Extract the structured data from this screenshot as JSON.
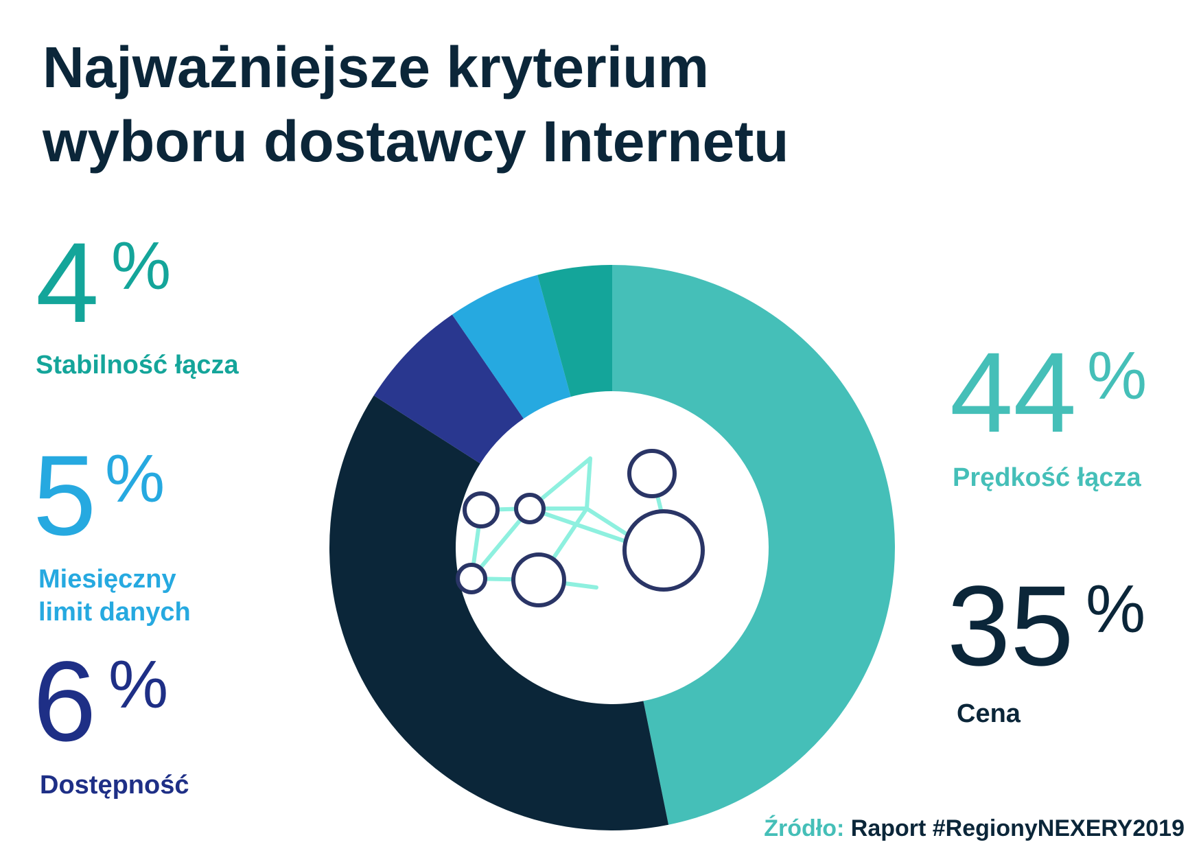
{
  "title": {
    "line1": "Najważniejsze kryterium",
    "line2": "wyboru dostawcy Internetu"
  },
  "chart_data": {
    "type": "pie",
    "title": "Najważniejsze kryterium wyboru dostawcy Internetu",
    "donut": true,
    "start_angle_deg": 0,
    "direction": "clockwise",
    "categories": [
      "Prędkość łącza",
      "Cena",
      "Dostępność",
      "Miesięczny limit danych",
      "Stabilność łącza"
    ],
    "values": [
      44,
      35,
      6,
      5,
      4
    ],
    "colors": [
      "#45bfb8",
      "#0b2639",
      "#29378f",
      "#26a9e0",
      "#14a59a"
    ]
  },
  "stats": {
    "predkosc": {
      "number": "44",
      "unit": "%",
      "label": "Prędkość łącza",
      "color": "#45bfb8"
    },
    "cena": {
      "number": "35",
      "unit": "%",
      "label": "Cena",
      "color": "#0b2639"
    },
    "dostepnosc": {
      "number": "6",
      "unit": "%",
      "label": "Dostępność",
      "color": "#1e2f86"
    },
    "limit": {
      "number": "5",
      "unit": "%",
      "label_line1": "Miesięczny",
      "label_line2": "limit danych",
      "color": "#26a9e0"
    },
    "stabilnosc": {
      "number": "4",
      "unit": "%",
      "label": "Stabilność łącza",
      "color": "#14a59a"
    }
  },
  "center_icon": "network-nodes-icon",
  "source": {
    "prefix": "Źródło:",
    "text": "Raport #RegionyNEXERY2019",
    "prefix_color": "#45bfb8",
    "text_color": "#0b2639"
  }
}
